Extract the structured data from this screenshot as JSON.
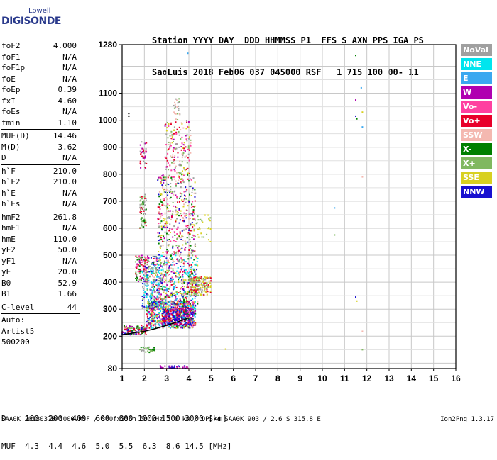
{
  "logo": {
    "line1": "Lowell",
    "line2": "DIGISONDE"
  },
  "header": {
    "line1": "Station YYYY DAY  DDD HHMMSS P1  FFS S AXN PPS IGA PS",
    "line2": "SaoLuis 2018 Feb06 037 045000 RSF   1 715 100 00- 11"
  },
  "params": {
    "group1": [
      {
        "k": "foF2",
        "v": "4.000"
      },
      {
        "k": "foF1",
        "v": "N/A"
      },
      {
        "k": "foF1p",
        "v": "N/A"
      },
      {
        "k": "foE",
        "v": "N/A"
      },
      {
        "k": "foEp",
        "v": "0.39"
      },
      {
        "k": "fxI",
        "v": "4.60"
      },
      {
        "k": "foEs",
        "v": "N/A"
      },
      {
        "k": "fmin",
        "v": "1.10"
      }
    ],
    "group2": [
      {
        "k": "MUF(D)",
        "v": "14.46"
      },
      {
        "k": "M(D)",
        "v": "3.62"
      },
      {
        "k": "D",
        "v": "N/A"
      }
    ],
    "group3": [
      {
        "k": "h`F",
        "v": "210.0"
      },
      {
        "k": "h`F2",
        "v": "210.0"
      },
      {
        "k": "h`E",
        "v": "N/A"
      },
      {
        "k": "h`Es",
        "v": "N/A"
      }
    ],
    "group4": [
      {
        "k": "hmF2",
        "v": "261.8"
      },
      {
        "k": "hmF1",
        "v": "N/A"
      },
      {
        "k": "hmE",
        "v": "110.0"
      },
      {
        "k": "yF2",
        "v": "50.0"
      },
      {
        "k": "yF1",
        "v": "N/A"
      },
      {
        "k": "yE",
        "v": "20.0"
      },
      {
        "k": "B0",
        "v": "52.9"
      },
      {
        "k": "B1",
        "v": "1.66"
      }
    ],
    "group5": [
      {
        "k": "C-level",
        "v": "44"
      }
    ],
    "auto": [
      "Auto:",
      "Artist5",
      "500200"
    ]
  },
  "legend": [
    {
      "label": "NoVal",
      "color": "#a0a0a0"
    },
    {
      "label": "NNE",
      "color": "#00e5ee"
    },
    {
      "label": "E",
      "color": "#3aa8f0"
    },
    {
      "label": "W",
      "color": "#b000b0"
    },
    {
      "label": "Vo-",
      "color": "#ff40a0"
    },
    {
      "label": "Vo+",
      "color": "#e8002a"
    },
    {
      "label": "SSW",
      "color": "#f4b8b0"
    },
    {
      "label": "X-",
      "color": "#008000"
    },
    {
      "label": "X+",
      "color": "#80b860"
    },
    {
      "label": "SSE",
      "color": "#d8d020"
    },
    {
      "label": "NNW",
      "color": "#1810d0"
    }
  ],
  "muf": {
    "line1": "D    100  200  400  600  800 1000 1500 3000 [km]",
    "line2": "MUF  4.3  4.4  4.6  5.0  5.5  6.3  8.6 14.5 [MHz]"
  },
  "footer": "SAA0K_2018037045000.RSF / 300fx256h 50 kHz 5.0 km / DPS-4 SAA0K 903 / 2.6 S 315.8 E",
  "version": "Ion2Png 1.3.17",
  "chart_data": {
    "type": "scatter",
    "xlim": [
      1,
      16
    ],
    "ylim": [
      80,
      1280
    ],
    "xticks": [
      "1",
      "2",
      "3",
      "4",
      "5",
      "6",
      "7",
      "8",
      "9",
      "10",
      "11",
      "12",
      "13",
      "14",
      "15",
      "16"
    ],
    "yticks": [
      {
        "v": 80,
        "label": "80"
      },
      {
        "v": 200,
        "label": "200"
      },
      {
        "v": 300,
        "label": "300"
      },
      {
        "v": 400,
        "label": "400"
      },
      {
        "v": 500,
        "label": "500"
      },
      {
        "v": 600,
        "label": "600"
      },
      {
        "v": 700,
        "label": "700"
      },
      {
        "v": 800,
        "label": "800"
      },
      {
        "v": 900,
        "label": "900"
      },
      {
        "v": 1000,
        "label": "1000"
      },
      {
        "v": 1100,
        "label": "1100"
      },
      {
        "v": 1280,
        "label": "1280"
      }
    ],
    "grid": true,
    "trace": {
      "x": [
        1.0,
        1.5,
        2.0,
        2.5,
        3.0,
        3.5,
        4.0
      ],
      "y": [
        205,
        212,
        218,
        228,
        240,
        253,
        268
      ]
    },
    "sparse_points": [
      {
        "x": 11.5,
        "y": 1240,
        "c": "#008000"
      },
      {
        "x": 11.75,
        "y": 1120,
        "c": "#3aa8f0"
      },
      {
        "x": 11.5,
        "y": 1075,
        "c": "#b000b0"
      },
      {
        "x": 11.5,
        "y": 1015,
        "c": "#1810d0"
      },
      {
        "x": 11.55,
        "y": 1005,
        "c": "#008000"
      },
      {
        "x": 11.8,
        "y": 1030,
        "c": "#d8d020"
      },
      {
        "x": 11.8,
        "y": 975,
        "c": "#3aa8f0"
      },
      {
        "x": 10.55,
        "y": 675,
        "c": "#3aa8f0"
      },
      {
        "x": 10.55,
        "y": 575,
        "c": "#80b860"
      },
      {
        "x": 11.5,
        "y": 345,
        "c": "#1810d0"
      },
      {
        "x": 11.55,
        "y": 330,
        "c": "#d8d020"
      },
      {
        "x": 11.8,
        "y": 218,
        "c": "#f4b8b0"
      },
      {
        "x": 11.8,
        "y": 150,
        "c": "#80b860"
      },
      {
        "x": 5.65,
        "y": 152,
        "c": "#d8d020"
      },
      {
        "x": 3.95,
        "y": 1248,
        "c": "#3aa8f0"
      },
      {
        "x": 11.8,
        "y": 790,
        "c": "#f4b8b0"
      },
      {
        "x": 1.3,
        "y": 1025,
        "c": "#000000"
      },
      {
        "x": 1.3,
        "y": 1015,
        "c": "#000000"
      }
    ],
    "clusters": [
      {
        "x": [
          1.0,
          2.1
        ],
        "y": [
          205,
          240
        ],
        "n": 120,
        "colors": [
          "#008000",
          "#80b860",
          "#e8002a",
          "#b000b0",
          "#1810d0"
        ]
      },
      {
        "x": [
          1.6,
          2.2
        ],
        "y": [
          400,
          500
        ],
        "n": 110,
        "colors": [
          "#008000",
          "#80b860",
          "#e8002a",
          "#ff40a0",
          "#b000b0"
        ]
      },
      {
        "x": [
          1.8,
          2.1
        ],
        "y": [
          600,
          730
        ],
        "n": 60,
        "colors": [
          "#80b860",
          "#e8002a",
          "#008000",
          "#a0a0a0"
        ]
      },
      {
        "x": [
          1.8,
          2.1
        ],
        "y": [
          820,
          920
        ],
        "n": 35,
        "colors": [
          "#b000b0",
          "#e8002a",
          "#a0a0a0"
        ]
      },
      {
        "x": [
          1.8,
          2.5
        ],
        "y": [
          140,
          160
        ],
        "n": 30,
        "colors": [
          "#80b860",
          "#008000",
          "#a0a0a0"
        ]
      },
      {
        "x": [
          2.1,
          4.3
        ],
        "y": [
          230,
          330
        ],
        "n": 700,
        "colors": [
          "#008000",
          "#80b860",
          "#e8002a",
          "#ff40a0",
          "#b000b0",
          "#1810d0",
          "#3aa8f0",
          "#d8d020",
          "#00e5ee"
        ]
      },
      {
        "x": [
          2.3,
          4.4
        ],
        "y": [
          300,
          500
        ],
        "n": 550,
        "colors": [
          "#008000",
          "#80b860",
          "#e8002a",
          "#ff40a0",
          "#b000b0",
          "#1810d0",
          "#3aa8f0",
          "#d8d020",
          "#00e5ee",
          "#f4b8b0"
        ]
      },
      {
        "x": [
          2.6,
          4.3
        ],
        "y": [
          500,
          800
        ],
        "n": 420,
        "colors": [
          "#008000",
          "#80b860",
          "#e8002a",
          "#ff40a0",
          "#b000b0",
          "#1810d0",
          "#d8d020",
          "#a0a0a0",
          "#f4b8b0"
        ]
      },
      {
        "x": [
          2.9,
          4.1
        ],
        "y": [
          800,
          1000
        ],
        "n": 160,
        "colors": [
          "#80b860",
          "#e8002a",
          "#ff40a0",
          "#b000b0",
          "#d8d020",
          "#a0a0a0",
          "#f4b8b0"
        ]
      },
      {
        "x": [
          1.9,
          2.9
        ],
        "y": [
          300,
          470
        ],
        "n": 160,
        "colors": [
          "#3aa8f0",
          "#00e5ee",
          "#1810d0",
          "#a0a0a0",
          "#80b860"
        ]
      },
      {
        "x": [
          4.0,
          5.0
        ],
        "y": [
          350,
          420
        ],
        "n": 180,
        "colors": [
          "#d8d020",
          "#d8d020",
          "#e8002a",
          "#80b860",
          "#a0a0a0"
        ]
      },
      {
        "x": [
          4.2,
          5.0
        ],
        "y": [
          550,
          650
        ],
        "n": 30,
        "colors": [
          "#d8d020",
          "#80b860"
        ]
      },
      {
        "x": [
          3.3,
          3.6
        ],
        "y": [
          1000,
          1080
        ],
        "n": 25,
        "colors": [
          "#f4b8b0",
          "#80b860",
          "#a0a0a0"
        ]
      },
      {
        "x": [
          2.8,
          4.2
        ],
        "y": [
          240,
          300
        ],
        "n": 200,
        "colors": [
          "#1810d0",
          "#1810d0",
          "#b000b0",
          "#e8002a"
        ]
      },
      {
        "x": [
          2.7,
          4.0
        ],
        "y": [
          80,
          90
        ],
        "n": 40,
        "colors": [
          "#b000b0",
          "#ff40a0",
          "#1810d0"
        ]
      }
    ]
  }
}
